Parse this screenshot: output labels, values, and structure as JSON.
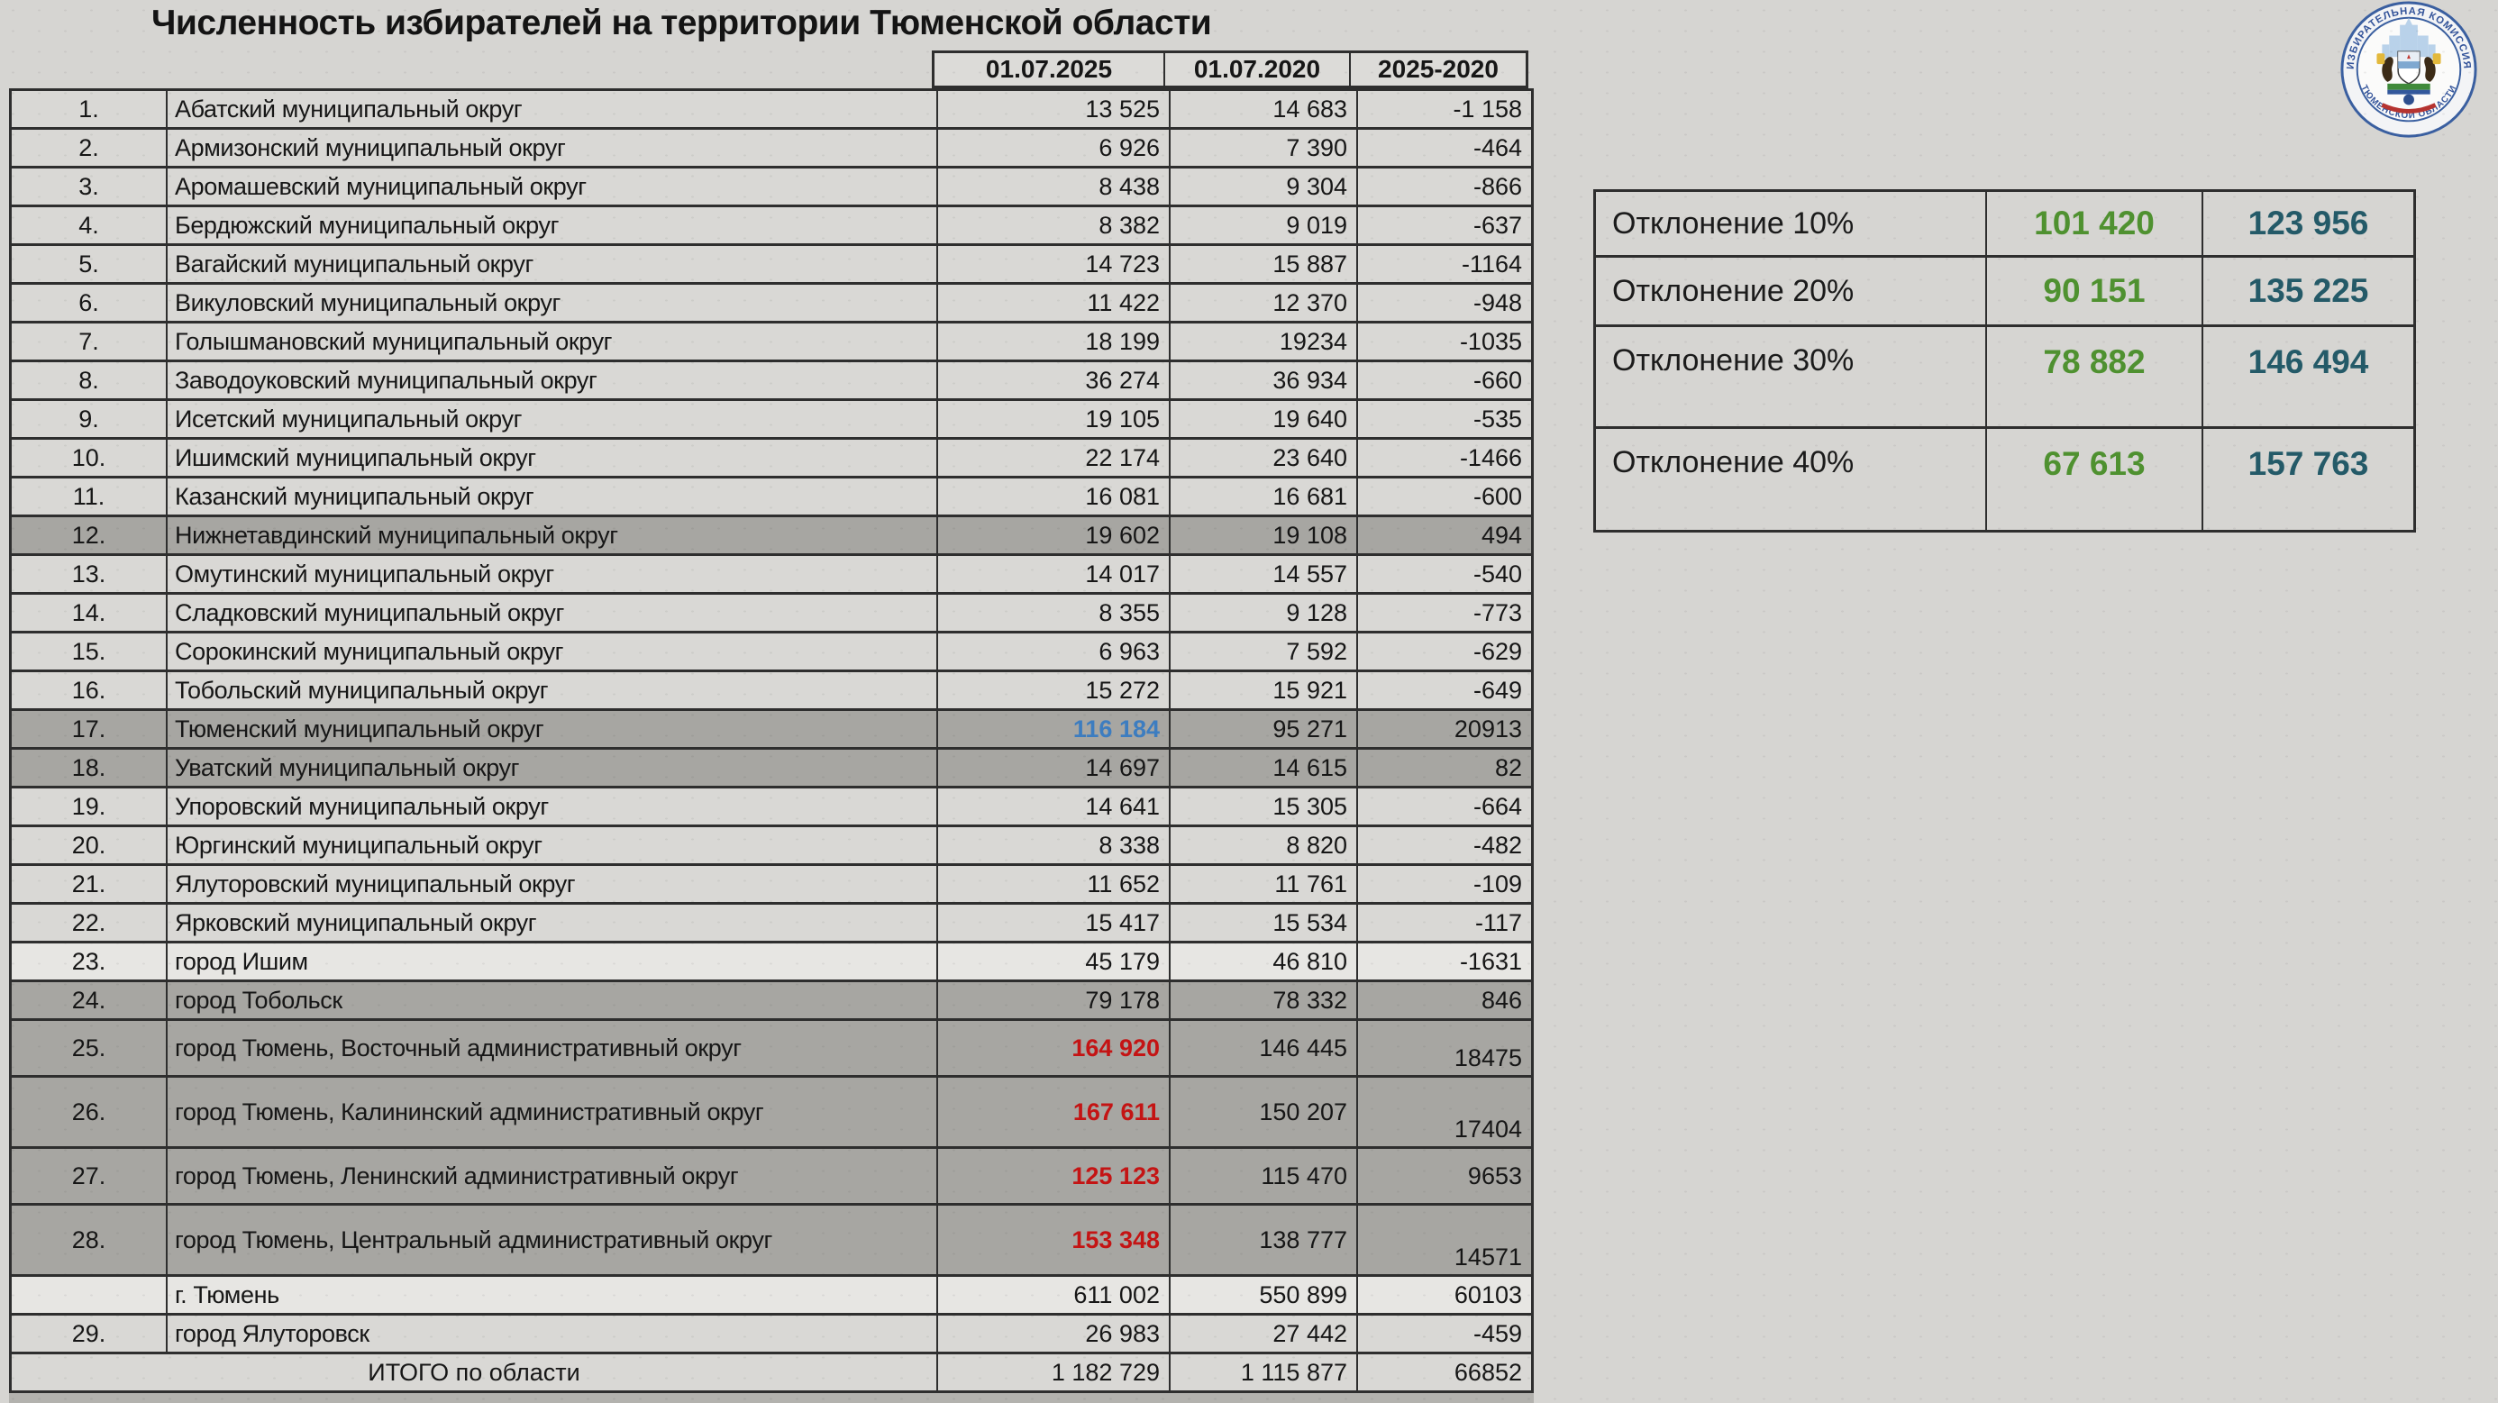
{
  "title": "Численность избирателей на территории Тюменской области",
  "main_table": {
    "headers": [
      "01.07.2025",
      "01.07.2020",
      "2025-2020"
    ],
    "rows": [
      {
        "num": "1.",
        "name": "Абатский муниципальный округ",
        "v2025": "13 525",
        "v2020": "14 683",
        "diff": "-1 158",
        "shade": "normal",
        "size": "m",
        "v2025_color": "default",
        "diff_align": "center",
        "merged": false
      },
      {
        "num": "2.",
        "name": "Армизонский муниципальный округ",
        "v2025": "6 926",
        "v2020": "7 390",
        "diff": "-464",
        "shade": "normal",
        "size": "m",
        "v2025_color": "default",
        "diff_align": "center",
        "merged": false
      },
      {
        "num": "3.",
        "name": "Аромашевский муниципальный округ",
        "v2025": "8 438",
        "v2020": "9 304",
        "diff": "-866",
        "shade": "normal",
        "size": "m",
        "v2025_color": "default",
        "diff_align": "center",
        "merged": false
      },
      {
        "num": "4.",
        "name": "Бердюжский муниципальный округ",
        "v2025": "8 382",
        "v2020": "9 019",
        "diff": "-637",
        "shade": "normal",
        "size": "m",
        "v2025_color": "default",
        "diff_align": "center",
        "merged": false
      },
      {
        "num": "5.",
        "name": "Вагайский муниципальный округ",
        "v2025": "14 723",
        "v2020": "15 887",
        "diff": "-1164",
        "shade": "normal",
        "size": "m",
        "v2025_color": "default",
        "diff_align": "center",
        "merged": false
      },
      {
        "num": "6.",
        "name": "Викуловский муниципальный округ",
        "v2025": "11 422",
        "v2020": "12 370",
        "diff": "-948",
        "shade": "normal",
        "size": "m",
        "v2025_color": "default",
        "diff_align": "center",
        "merged": false
      },
      {
        "num": "7.",
        "name": "Голышмановский муниципальный округ",
        "v2025": "18 199",
        "v2020": "19234",
        "diff": "-1035",
        "shade": "normal",
        "size": "m",
        "v2025_color": "default",
        "diff_align": "center",
        "merged": false
      },
      {
        "num": "8.",
        "name": "Заводоуковский муниципальный округ",
        "v2025": "36 274",
        "v2020": "36 934",
        "diff": "-660",
        "shade": "normal",
        "size": "m",
        "v2025_color": "default",
        "diff_align": "center",
        "merged": false
      },
      {
        "num": "9.",
        "name": "Исетский муниципальный округ",
        "v2025": "19 105",
        "v2020": "19 640",
        "diff": "-535",
        "shade": "normal",
        "size": "m",
        "v2025_color": "default",
        "diff_align": "center",
        "merged": false
      },
      {
        "num": "10.",
        "name": "Ишимский муниципальный округ",
        "v2025": "22 174",
        "v2020": "23 640",
        "diff": "-1466",
        "shade": "normal",
        "size": "m",
        "v2025_color": "default",
        "diff_align": "center",
        "merged": false
      },
      {
        "num": "11.",
        "name": "Казанский муниципальный округ",
        "v2025": "16 081",
        "v2020": "16 681",
        "diff": "-600",
        "shade": "normal",
        "size": "m",
        "v2025_color": "default",
        "diff_align": "center",
        "merged": false
      },
      {
        "num": "12.",
        "name": "Нижнетавдинский муниципальный округ",
        "v2025": "19 602",
        "v2020": "19 108",
        "diff": "494",
        "shade": "dark",
        "size": "m",
        "v2025_color": "default",
        "diff_align": "center",
        "merged": false
      },
      {
        "num": "13.",
        "name": "Омутинский муниципальный округ",
        "v2025": "14 017",
        "v2020": "14 557",
        "diff": "-540",
        "shade": "normal",
        "size": "m",
        "v2025_color": "default",
        "diff_align": "center",
        "merged": false
      },
      {
        "num": "14.",
        "name": "Сладковский муниципальный округ",
        "v2025": "8 355",
        "v2020": "9 128",
        "diff": "-773",
        "shade": "normal",
        "size": "m",
        "v2025_color": "default",
        "diff_align": "center",
        "merged": false
      },
      {
        "num": "15.",
        "name": "Сорокинский муниципальный округ",
        "v2025": "6 963",
        "v2020": "7 592",
        "diff": "-629",
        "shade": "normal",
        "size": "m",
        "v2025_color": "default",
        "diff_align": "center",
        "merged": false
      },
      {
        "num": "16.",
        "name": "Тобольский муниципальный округ",
        "v2025": "15 272",
        "v2020": "15 921",
        "diff": "-649",
        "shade": "normal",
        "size": "m",
        "v2025_color": "default",
        "diff_align": "center",
        "merged": false
      },
      {
        "num": "17.",
        "name": "Тюменский муниципальный округ",
        "v2025": "116 184",
        "v2020": "95 271",
        "diff": "20913",
        "shade": "dark",
        "size": "m",
        "v2025_color": "blue",
        "diff_align": "center",
        "merged": false
      },
      {
        "num": "18.",
        "name": "Уватский муниципальный округ",
        "v2025": "14 697",
        "v2020": "14 615",
        "diff": "82",
        "shade": "dark",
        "size": "m",
        "v2025_color": "default",
        "diff_align": "center",
        "merged": false
      },
      {
        "num": "19.",
        "name": "Упоровский муниципальный округ",
        "v2025": "14 641",
        "v2020": "15 305",
        "diff": "-664",
        "shade": "normal",
        "size": "m",
        "v2025_color": "default",
        "diff_align": "center",
        "merged": false
      },
      {
        "num": "20.",
        "name": "Юргинский муниципальный округ",
        "v2025": "8 338",
        "v2020": "8 820",
        "diff": "-482",
        "shade": "normal",
        "size": "m",
        "v2025_color": "default",
        "diff_align": "center",
        "merged": false
      },
      {
        "num": "21.",
        "name": "Ялуторовский муниципальный округ",
        "v2025": "11 652",
        "v2020": "11 761",
        "diff": "-109",
        "shade": "normal",
        "size": "m",
        "v2025_color": "default",
        "diff_align": "center",
        "merged": false
      },
      {
        "num": "22.",
        "name": "Ярковский муниципальный округ",
        "v2025": "15 417",
        "v2020": "15 534",
        "diff": "-117",
        "shade": "normal",
        "size": "m",
        "v2025_color": "default",
        "diff_align": "center",
        "merged": false
      },
      {
        "num": "23.",
        "name": "город Ишим",
        "v2025": "45 179",
        "v2020": "46 810",
        "diff": "-1631",
        "shade": "light",
        "size": "m",
        "v2025_color": "default",
        "diff_align": "center",
        "merged": false
      },
      {
        "num": "24.",
        "name": "город Тобольск",
        "v2025": "79 178",
        "v2020": "78 332",
        "diff": "846",
        "shade": "dark",
        "size": "m",
        "v2025_color": "default",
        "diff_align": "center",
        "merged": false
      },
      {
        "num": "25.",
        "name": "город Тюмень, Восточный административный округ",
        "v2025": "164 920",
        "v2020": "146 445",
        "diff": "18475",
        "shade": "dark",
        "size": "l",
        "v2025_color": "red",
        "diff_align": "bottom",
        "merged": false
      },
      {
        "num": "26.",
        "name": "город Тюмень, Калининский административный округ",
        "v2025": "167 611",
        "v2020": "150 207",
        "diff": "17404",
        "shade": "dark",
        "size": "xl",
        "v2025_color": "red",
        "diff_align": "bottom",
        "merged": false
      },
      {
        "num": "27.",
        "name": "город Тюмень, Ленинский административный округ",
        "v2025": "125 123",
        "v2020": "115 470",
        "diff": "9653",
        "shade": "dark",
        "size": "l",
        "v2025_color": "red",
        "diff_align": "center",
        "merged": false
      },
      {
        "num": "28.",
        "name": "город Тюмень, Центральный административный округ",
        "v2025": "153 348",
        "v2020": "138 777",
        "diff": "14571",
        "shade": "dark",
        "size": "xl",
        "v2025_color": "red",
        "diff_align": "bottom",
        "merged": false
      },
      {
        "num": "",
        "name": "г. Тюмень",
        "v2025": "611 002",
        "v2020": "550 899",
        "diff": "60103",
        "shade": "light",
        "size": "m",
        "v2025_color": "default",
        "diff_align": "center",
        "merged": false
      },
      {
        "num": "29.",
        "name": "город Ялуторовск",
        "v2025": "26 983",
        "v2020": "27 442",
        "diff": "-459",
        "shade": "normal",
        "size": "m",
        "v2025_color": "default",
        "diff_align": "center",
        "merged": false
      },
      {
        "num": "",
        "name": "ИТОГО по области",
        "v2025": "1 182 729",
        "v2020": "1 115 877",
        "diff": "66852",
        "shade": "normal",
        "size": "m",
        "v2025_color": "default",
        "diff_align": "center",
        "merged": true
      }
    ]
  },
  "deviation_table": {
    "rows": [
      {
        "label": "Отклонение 10%",
        "green": "101 420",
        "teal": "123 956",
        "size": "s",
        "align": "center"
      },
      {
        "label": "Отклонение 20%",
        "green": "90 151",
        "teal": "135 225",
        "size": "s2",
        "align": "center"
      },
      {
        "label": "Отклонение 30%",
        "green": "78 882",
        "teal": "146 494",
        "size": "l",
        "align": "top"
      },
      {
        "label": "Отклонение 40%",
        "green": "67 613",
        "teal": "157 763",
        "size": "l2",
        "align": "top"
      }
    ]
  },
  "logo": {
    "name": "election-commission-emblem",
    "ring_text_top": "ИЗБИРАТЕЛЬНАЯ КОМИССИЯ",
    "ring_text_bottom": "ТЮМЕНСКОЙ ОБЛАСТИ"
  },
  "colors": {
    "page_bg": "#d6d5d2",
    "row_normal": "#d9d8d5",
    "row_light": "#e7e6e3",
    "row_highlight": "#a7a6a2",
    "border": "#2e2e2e",
    "value_red": "#c41414",
    "value_blue": "#3d7dc0",
    "deviation_green": "#4f9130",
    "deviation_teal": "#245a68"
  }
}
